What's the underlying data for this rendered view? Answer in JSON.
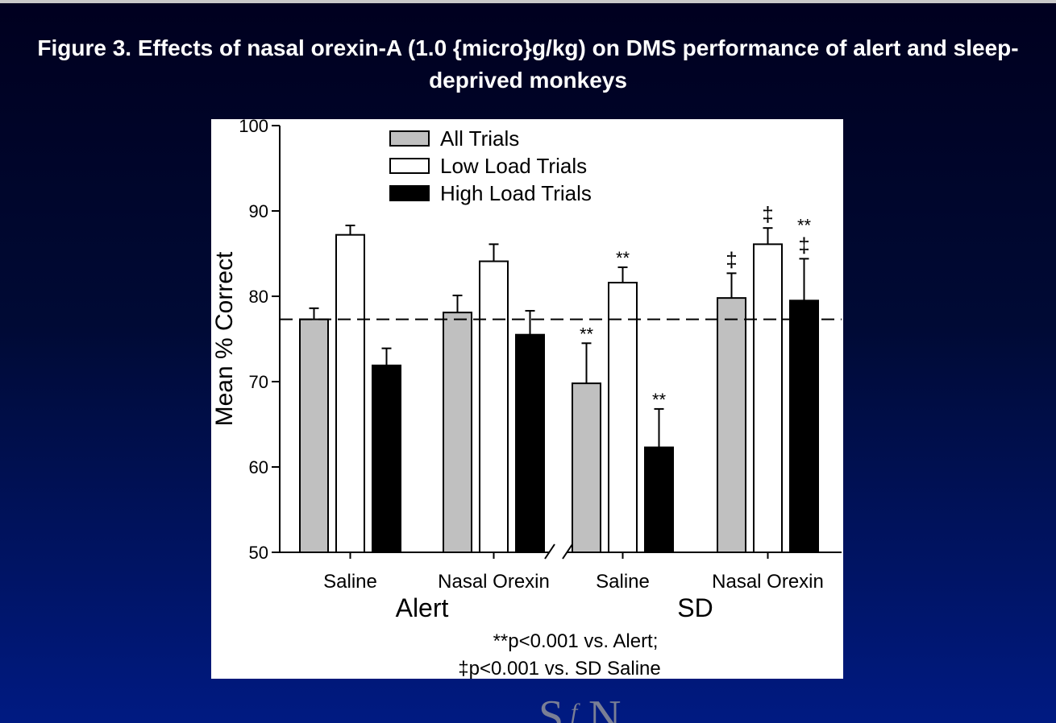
{
  "slide_title": "Figure 3. Effects of nasal orexin-A (1.0 {micro}g/kg) on DMS performance of alert and sleep-deprived monkeys",
  "colors": {
    "all_trials": "#c0c0c0",
    "low_load": "#ffffff",
    "high_load": "#000000",
    "background_top": "#00001f",
    "background_bottom": "#001a82"
  },
  "chart_data": {
    "type": "bar",
    "title": "",
    "xlabel": "",
    "ylabel": "Mean % Correct",
    "ylim": [
      50,
      100
    ],
    "yticks": [
      50,
      60,
      70,
      80,
      90,
      100
    ],
    "y_tick_labels": [
      "50",
      "60",
      "70",
      "80",
      "90",
      "100"
    ],
    "categories": [
      "Saline",
      "Nasal Orexin",
      "Saline",
      "Nasal Orexin"
    ],
    "groups": [
      {
        "label": "Alert",
        "categories": [
          0,
          1
        ]
      },
      {
        "label": "SD",
        "categories": [
          2,
          3
        ]
      }
    ],
    "series": [
      {
        "name": "All Trials",
        "values": [
          77.3,
          78.1,
          69.8,
          79.8
        ],
        "errors": [
          1.3,
          2.0,
          4.7,
          2.9
        ]
      },
      {
        "name": "Low Load Trials",
        "values": [
          87.2,
          84.1,
          81.6,
          86.1
        ],
        "errors": [
          1.1,
          2.0,
          1.8,
          1.9
        ]
      },
      {
        "name": "High Load Trials",
        "values": [
          71.9,
          75.5,
          62.3,
          79.5
        ],
        "errors": [
          2.0,
          2.8,
          4.5,
          4.9
        ]
      }
    ],
    "reference_line": 77.3,
    "annotations": [
      {
        "category": 2,
        "series": 0,
        "text": "**"
      },
      {
        "category": 2,
        "series": 1,
        "text": "**"
      },
      {
        "category": 2,
        "series": 2,
        "text": "**"
      },
      {
        "category": 3,
        "series": 0,
        "text": "‡"
      },
      {
        "category": 3,
        "series": 1,
        "text": "‡"
      },
      {
        "category": 3,
        "series": 2,
        "text": "**"
      },
      {
        "category": 3,
        "series": 2,
        "text": "‡"
      }
    ],
    "footnotes": [
      "**p<0.001 vs. Alert;",
      "‡p<0.001 vs. SD Saline"
    ],
    "legend_position": "top"
  }
}
